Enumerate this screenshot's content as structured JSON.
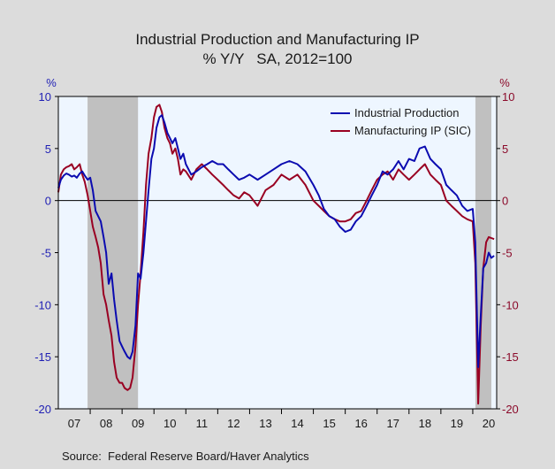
{
  "chart_data": {
    "type": "line",
    "title": "Industrial Production and Manufacturing IP",
    "subtitle": "% Y/Y   SA, 2012=100",
    "left_axis_unit": "%",
    "right_axis_unit": "%",
    "ylim": [
      -20,
      10
    ],
    "y_ticks": [
      "10",
      "5",
      "0",
      "-5",
      "-10",
      "-15",
      "-20"
    ],
    "x_tick_labels": [
      "07",
      "08",
      "09",
      "10",
      "11",
      "12",
      "13",
      "14",
      "15",
      "16",
      "17",
      "18",
      "19",
      "20"
    ],
    "recessions": [
      [
        2007.917,
        2009.5
      ],
      [
        2020.083,
        2020.583
      ]
    ],
    "source": "Source:  Federal Reserve Board/Haver Analytics",
    "legend_position": "top-right",
    "colors": {
      "ip": "#0b0bb0",
      "mfg": "#990022",
      "plot_bg": "#eef6ff",
      "recession": "#c0c0c0",
      "axis_left": "#1f1fb4",
      "axis_right": "#8b0a2a"
    },
    "series": [
      {
        "name": "Industrial Production",
        "key": "ip",
        "x": [
          2007.0,
          2007.08,
          2007.17,
          2007.25,
          2007.33,
          2007.42,
          2007.5,
          2007.58,
          2007.67,
          2007.75,
          2007.83,
          2007.92,
          2008.0,
          2008.08,
          2008.17,
          2008.25,
          2008.33,
          2008.42,
          2008.5,
          2008.58,
          2008.67,
          2008.75,
          2008.83,
          2008.92,
          2009.0,
          2009.08,
          2009.17,
          2009.25,
          2009.33,
          2009.42,
          2009.5,
          2009.58,
          2009.67,
          2009.75,
          2009.83,
          2009.92,
          2010.0,
          2010.08,
          2010.17,
          2010.25,
          2010.33,
          2010.42,
          2010.5,
          2010.58,
          2010.67,
          2010.75,
          2010.83,
          2010.92,
          2011.0,
          2011.17,
          2011.33,
          2011.5,
          2011.67,
          2011.83,
          2012.0,
          2012.17,
          2012.33,
          2012.5,
          2012.67,
          2012.83,
          2013.0,
          2013.25,
          2013.5,
          2013.75,
          2014.0,
          2014.25,
          2014.5,
          2014.75,
          2015.0,
          2015.17,
          2015.33,
          2015.5,
          2015.67,
          2015.83,
          2016.0,
          2016.17,
          2016.33,
          2016.5,
          2016.67,
          2016.83,
          2017.0,
          2017.17,
          2017.33,
          2017.5,
          2017.67,
          2017.83,
          2018.0,
          2018.17,
          2018.33,
          2018.5,
          2018.67,
          2018.83,
          2019.0,
          2019.17,
          2019.33,
          2019.5,
          2019.67,
          2019.83,
          2020.0,
          2020.08,
          2020.17,
          2020.25,
          2020.33,
          2020.42,
          2020.5,
          2020.58,
          2020.67
        ],
        "values": [
          1.2,
          2.0,
          2.4,
          2.6,
          2.5,
          2.3,
          2.4,
          2.2,
          2.6,
          2.8,
          2.4,
          2.0,
          2.2,
          1.0,
          -1.0,
          -1.5,
          -2.0,
          -3.5,
          -5.0,
          -8.0,
          -7.0,
          -9.5,
          -11.5,
          -13.5,
          -14.0,
          -14.5,
          -15.0,
          -15.2,
          -14.5,
          -12.0,
          -7.0,
          -7.5,
          -5.0,
          -2.0,
          1.0,
          4.0,
          5.0,
          7.0,
          8.0,
          8.2,
          7.5,
          6.5,
          6.0,
          5.5,
          6.0,
          5.0,
          4.0,
          4.5,
          3.5,
          2.5,
          2.8,
          3.2,
          3.5,
          3.8,
          3.5,
          3.5,
          3.0,
          2.5,
          2.0,
          2.2,
          2.5,
          2.0,
          2.5,
          3.0,
          3.5,
          3.8,
          3.5,
          2.8,
          1.5,
          0.5,
          -0.8,
          -1.5,
          -1.8,
          -2.5,
          -3.0,
          -2.8,
          -2.0,
          -1.5,
          -0.5,
          0.5,
          1.5,
          2.8,
          2.5,
          3.0,
          3.8,
          3.0,
          4.0,
          3.8,
          5.0,
          5.2,
          4.0,
          3.5,
          3.0,
          1.5,
          1.0,
          0.5,
          -0.5,
          -1.0,
          -0.8,
          -4.0,
          -16.0,
          -11.0,
          -6.5,
          -6.0,
          -5.0,
          -5.5,
          -5.3
        ]
      },
      {
        "name": "Manufacturing IP (SIC)",
        "key": "mfg",
        "x": [
          2007.0,
          2007.08,
          2007.17,
          2007.25,
          2007.33,
          2007.42,
          2007.5,
          2007.58,
          2007.67,
          2007.75,
          2007.83,
          2007.92,
          2008.0,
          2008.08,
          2008.17,
          2008.25,
          2008.33,
          2008.42,
          2008.5,
          2008.58,
          2008.67,
          2008.75,
          2008.83,
          2008.92,
          2009.0,
          2009.08,
          2009.17,
          2009.25,
          2009.33,
          2009.42,
          2009.5,
          2009.58,
          2009.67,
          2009.75,
          2009.83,
          2009.92,
          2010.0,
          2010.08,
          2010.17,
          2010.25,
          2010.33,
          2010.42,
          2010.5,
          2010.58,
          2010.67,
          2010.75,
          2010.83,
          2010.92,
          2011.0,
          2011.17,
          2011.33,
          2011.5,
          2011.67,
          2011.83,
          2012.0,
          2012.17,
          2012.33,
          2012.5,
          2012.67,
          2012.83,
          2013.0,
          2013.25,
          2013.5,
          2013.75,
          2014.0,
          2014.25,
          2014.5,
          2014.75,
          2015.0,
          2015.17,
          2015.33,
          2015.5,
          2015.67,
          2015.83,
          2016.0,
          2016.17,
          2016.33,
          2016.5,
          2016.67,
          2016.83,
          2017.0,
          2017.17,
          2017.33,
          2017.5,
          2017.67,
          2017.83,
          2018.0,
          2018.17,
          2018.33,
          2018.5,
          2018.67,
          2018.83,
          2019.0,
          2019.17,
          2019.33,
          2019.5,
          2019.67,
          2019.83,
          2020.0,
          2020.08,
          2020.17,
          2020.25,
          2020.33,
          2020.42,
          2020.5,
          2020.58,
          2020.67
        ],
        "values": [
          0.8,
          2.5,
          3.0,
          3.2,
          3.3,
          3.5,
          3.0,
          3.2,
          3.5,
          2.5,
          1.8,
          0.5,
          -1.0,
          -2.5,
          -3.5,
          -4.5,
          -6.0,
          -9.0,
          -10.0,
          -11.5,
          -13.0,
          -15.5,
          -17.0,
          -17.5,
          -17.5,
          -18.0,
          -18.2,
          -18.0,
          -17.0,
          -14.0,
          -10.0,
          -7.0,
          -3.0,
          1.5,
          4.5,
          6.0,
          8.0,
          9.0,
          9.2,
          8.5,
          7.0,
          6.0,
          5.5,
          4.5,
          5.0,
          4.0,
          2.5,
          3.0,
          2.8,
          2.0,
          3.0,
          3.5,
          3.0,
          2.5,
          2.0,
          1.5,
          1.0,
          0.5,
          0.2,
          0.8,
          0.5,
          -0.5,
          1.0,
          1.5,
          2.5,
          2.0,
          2.5,
          1.5,
          0.0,
          -0.5,
          -1.0,
          -1.5,
          -1.8,
          -2.0,
          -2.0,
          -1.8,
          -1.2,
          -1.0,
          0.0,
          1.0,
          2.0,
          2.5,
          2.8,
          2.0,
          3.0,
          2.5,
          2.0,
          2.5,
          3.0,
          3.5,
          2.5,
          2.0,
          1.5,
          0.0,
          -0.5,
          -1.0,
          -1.5,
          -1.8,
          -2.0,
          -6.0,
          -19.5,
          -12.0,
          -6.5,
          -4.0,
          -3.5,
          -3.6,
          -3.7
        ]
      }
    ]
  }
}
